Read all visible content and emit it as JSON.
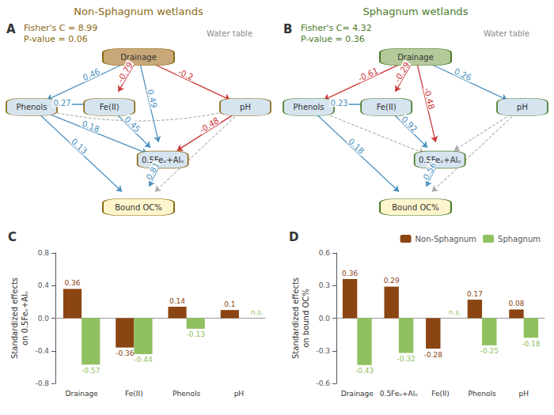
{
  "chart_data": [
    {
      "type": "graph",
      "title": "Non-Sphagnum wetlands",
      "color": "#8B6914",
      "subtitle": "Fisher's C = 8.99\nP-value = 0.06",
      "annotations": [
        {
          "text": "A"
        },
        {
          "text": "Water table",
          "color": "#8B8B8B"
        }
      ],
      "nodes": [
        "Drainage",
        "Phenols",
        "Fe(II)",
        "pH",
        "0.5Feₒ+Alₒ",
        "Bound OC%"
      ],
      "colors": [
        "#C8A878",
        "#D6E4F0",
        "#D6E4F0",
        "#D6E4F0",
        "#D6E4F0",
        "#FFF5CC"
      ],
      "edges": [
        {
          "source": "Drainage",
          "target": "Phenols",
          "value": 0.46,
          "color": "#4A90C0",
          "line_style": "solid"
        },
        {
          "source": "Drainage",
          "target": "Fe(II)",
          "value": -0.79,
          "color": "#CC3333",
          "line_style": "solid"
        },
        {
          "source": "Drainage",
          "target": "0.5Feₒ+Alₒ",
          "value": 0.49,
          "color": "#4A90C0",
          "line_style": "solid"
        },
        {
          "source": "Drainage",
          "target": "pH",
          "value": -0.2,
          "color": "#CC3333",
          "line_style": "solid"
        },
        {
          "source": "Phenols",
          "target": "Fe(II)",
          "value": 0.27,
          "color": "#4A90C0",
          "line_style": "solid"
        },
        {
          "source": "Phenols",
          "target": "0.5Feₒ+Alₒ",
          "value": 0.18,
          "color": "#4A90C0",
          "line_style": "solid"
        },
        {
          "source": "Phenols",
          "target": "Bound OC%",
          "value": 0.13,
          "color": "#4A90C0",
          "line_style": "solid"
        },
        {
          "source": "Fe(II)",
          "target": "0.5Feₒ+Alₒ",
          "value": 0.45,
          "color": "#4A90C0",
          "line_style": "solid"
        },
        {
          "source": "pH",
          "target": "0.5Feₒ+Alₒ",
          "value": -0.48,
          "color": "#CC3333",
          "line_style": "solid"
        },
        {
          "source": "0.5Feₒ+Alₒ",
          "target": "Bound OC%",
          "value": 0.81,
          "color": "#4A90C0",
          "line_style": "solid"
        },
        {
          "source": "pH",
          "target": "Bound OC%",
          "color": "#AAAAAA",
          "line_style": "dashed"
        },
        {
          "source": "pH",
          "target": "Phenols",
          "color": "#AAAAAA",
          "line_style": "dashed"
        }
      ]
    },
    {
      "type": "graph",
      "title": "Sphagnum wetlands",
      "color": "#4A7A2A",
      "subtitle": "Fisher's C= 4.32\nP-value = 0.36",
      "annotations": [
        {
          "text": "B"
        },
        {
          "text": "Water table",
          "color": "#8B8B8B"
        }
      ],
      "nodes": [
        "Drainage",
        "Phenols",
        "Fe(II)",
        "pH",
        "0.5Feₒ+Alₒ",
        "Bound OC%"
      ],
      "colors": [
        "#B5C99A",
        "#D6E4F0",
        "#D6E4F0",
        "#D6E4F0",
        "#D6E4F0",
        "#FFF5CC"
      ],
      "edges": [
        {
          "source": "Drainage",
          "target": "Phenols",
          "value": -0.61,
          "color": "#CC3333",
          "line_style": "solid"
        },
        {
          "source": "Drainage",
          "target": "Fe(II)",
          "value": -0.29,
          "color": "#CC3333",
          "line_style": "solid"
        },
        {
          "source": "Drainage",
          "target": "0.5Feₒ+Alₒ",
          "value": -0.48,
          "color": "#CC3333",
          "line_style": "solid"
        },
        {
          "source": "Drainage",
          "target": "pH",
          "value": 0.26,
          "color": "#4A90C0",
          "line_style": "solid"
        },
        {
          "source": "Phenols",
          "target": "Fe(II)",
          "value": 0.23,
          "color": "#4A90C0",
          "line_style": "solid"
        },
        {
          "source": "Phenols",
          "target": "Bound OC%",
          "value": 0.18,
          "color": "#4A90C0",
          "line_style": "solid"
        },
        {
          "source": "Fe(II)",
          "target": "0.5Feₒ+Alₒ",
          "value": 0.92,
          "color": "#4A90C0",
          "line_style": "solid"
        },
        {
          "source": "0.5Feₒ+Alₒ",
          "target": "Bound OC%",
          "value": 0.56,
          "color": "#4A90C0",
          "line_style": "solid"
        },
        {
          "source": "pH",
          "target": "0.5Feₒ+Alₒ",
          "color": "#AAAAAA",
          "line_style": "dashed"
        },
        {
          "source": "pH",
          "target": "Bound OC%",
          "color": "#AAAAAA",
          "line_style": "dashed"
        },
        {
          "source": "Phenols",
          "target": "0.5Feₒ+Alₒ",
          "color": "#AAAAAA",
          "line_style": "dashed"
        }
      ]
    },
    {
      "type": "bar",
      "annotations": [
        {
          "text": "C"
        }
      ],
      "categories": [
        "Drainage",
        "Fe(II)",
        "Phenols",
        "pH"
      ],
      "series": [
        {
          "name": "Non-Sphagnum",
          "color": "#8B4513",
          "values": [
            0.36,
            -0.36,
            0.14,
            0.1
          ]
        },
        {
          "name": "Sphagnum",
          "color": "#90C060",
          "values": [
            -0.57,
            -0.44,
            -0.13,
            null
          ],
          "value_labels": [
            "-0.57",
            "-0.44",
            "-0.13",
            "n.s."
          ]
        }
      ],
      "ylabel": "Standardized effects\non 0.5Feₒ+Alₒ",
      "ylim": [
        -0.8,
        0.8
      ],
      "yticks": [
        -0.8,
        -0.4,
        {
          "value": 0,
          "label": "0.0"
        },
        0.4,
        0.8
      ],
      "grid": false,
      "data_labels": true
    },
    {
      "type": "bar",
      "annotations": [
        {
          "text": "D"
        }
      ],
      "categories": [
        "Drainage",
        "0.5Feₒ+Alₒ",
        "Fe(II)",
        "Phenols",
        "pH"
      ],
      "series": [
        {
          "name": "Non-Sphagnum",
          "color": "#8B4513",
          "values": [
            0.36,
            0.29,
            -0.28,
            0.17,
            0.08
          ]
        },
        {
          "name": "Sphagnum",
          "color": "#90C060",
          "values": [
            -0.43,
            -0.32,
            null,
            -0.25,
            -0.18
          ],
          "value_labels": [
            "-0.43",
            "-0.32",
            "n.s.",
            "-0.25",
            "-0.18"
          ]
        }
      ],
      "ylabel": "Standardized effects\non bound OC%",
      "ylim": [
        -0.6,
        0.6
      ],
      "yticks": [
        -0.6,
        -0.3,
        {
          "value": 0,
          "label": "0.0"
        },
        0.3,
        0.6
      ],
      "grid": false,
      "data_labels": true,
      "legend": "upper right"
    }
  ]
}
